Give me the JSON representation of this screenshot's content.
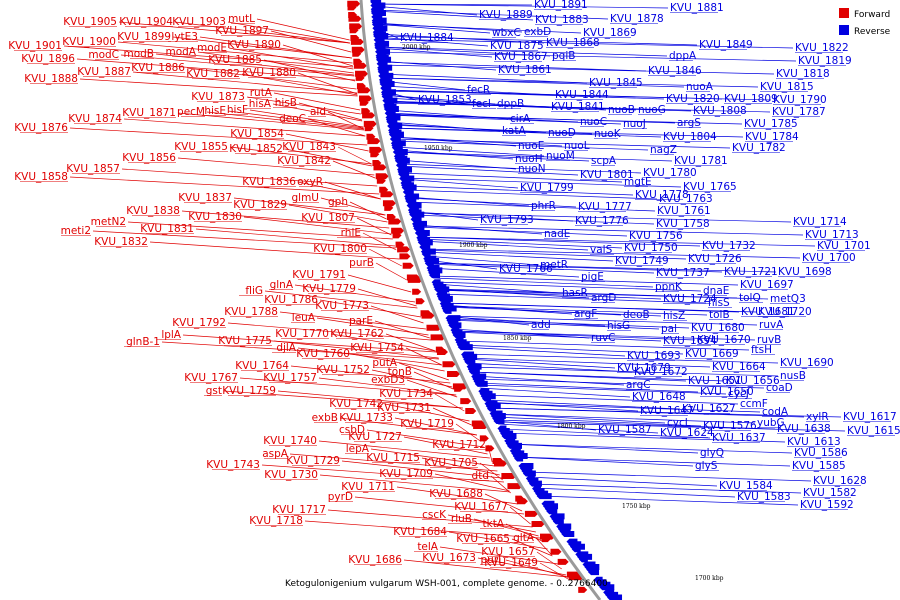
{
  "caption": "Ketogulonigenium vulgarum WSH-001, complete genome. - 0..2766400",
  "legend": [
    {
      "label": "Forward",
      "color": "#e00000"
    },
    {
      "label": "Reverse",
      "color": "#0000e0"
    }
  ],
  "colors": {
    "forward": "#e00000",
    "reverse": "#0000e0",
    "backbone": "#9a9a9a"
  },
  "ticks": [
    "2000 kbp",
    "1950 kbp",
    "1900 kbp",
    "1850 kbp",
    "1800 kbp",
    "1750 kbp",
    "1700 kbp"
  ],
  "forward_labels": [
    "KVU_1905",
    "KVU_1904",
    "KVU_1903",
    "mutL",
    "KVU_1897",
    "KVU_1901",
    "KVU_1900",
    "KVU_1899",
    "lytE3",
    "KVU_1890",
    "KVU_1896",
    "modC",
    "modB",
    "modA",
    "modE",
    "KVU_1885",
    "KVU_1888",
    "KVU_1887",
    "KVU_1886",
    "KVU_1882",
    "KVU_1880",
    "rutA",
    "KVU_1873",
    "hisB",
    "hisA",
    "KVU_1871",
    "pecM",
    "hisE",
    "hisF",
    "ald",
    "KVU_1876",
    "KVU_1874",
    "deoC",
    "KVU_1854",
    "KVU_1855",
    "KVU_1852",
    "KVU_1843",
    "KVU_1856",
    "KVU_1842",
    "KVU_1857",
    "KVU_1858",
    "KVU_1836",
    "oxyR",
    "KVU_1837",
    "KVU_1829",
    "glmU",
    "KVU_1838",
    "metN2",
    "KVU_1830",
    "KVU_1831",
    "meti2",
    "KVU_1832",
    "gph",
    "KVU_1807",
    "rhlE",
    "KVU_1800",
    "purB",
    "KVU_1791",
    "fliG",
    "glnA",
    "KVU_1779",
    "KVU_1786",
    "KVU_1773",
    "KVU_1788",
    "leuA",
    "KVU_1792",
    "parE",
    "lplA",
    "KVU_1770",
    "KVU_1762",
    "glnB-1",
    "KVU_1775",
    "djlA",
    "KVU_1754",
    "KVU_1760",
    "putA",
    "KVU_1764",
    "KVU_1752",
    "KVU_1767",
    "KVU_1757",
    "tonB",
    "gst",
    "KVU_1759",
    "exbD3",
    "KVU_1734",
    "KVU_1742",
    "KVU_1731",
    "exbB",
    "KVU_1733",
    "csbD",
    "KVU_1719",
    "KVU_1740",
    "KVU_1727",
    "aspA",
    "lepA",
    "KVU_1712",
    "KVU_1743",
    "KVU_1729",
    "KVU_1715",
    "KVU_1705",
    "KVU_1730",
    "KVU_1709",
    "dtd",
    "KVU_1711",
    "KVU_1688",
    "pyrD",
    "KVU_1677",
    "KVU_1717",
    "cscK",
    "rluB",
    "tktA",
    "KVU_1718",
    "KVU_1684",
    "KVU_1665",
    "gltA",
    "telA",
    "KVU_1657",
    "KVU_1686",
    "KVU_1673",
    "purL",
    "KVU_1649"
  ],
  "reverse_labels": [
    "KVU_1891",
    "KVU_1881",
    "KVU_1889",
    "KVU_1883",
    "KVU_1878",
    "KVU_1884",
    "wbxC",
    "exbD",
    "KVU_1869",
    "KVU_1875",
    "KVU_1868",
    "KVU_1849",
    "KVU_1867",
    "pqiB",
    "dppA",
    "KVU_1822",
    "KVU_1861",
    "KVU_1846",
    "KVU_1819",
    "fecR",
    "KVU_1845",
    "KVU_1818",
    "fecI",
    "KVU_1844",
    "nuoA",
    "KVU_1815",
    "KVU_1853",
    "dppB",
    "KVU_1820",
    "KVU_1809",
    "KVU_1790",
    "KVU_1841",
    "nuoB",
    "nuoG",
    "KVU_1808",
    "KVU_1787",
    "cirA",
    "nuoC",
    "nuoJ",
    "argS",
    "KVU_1785",
    "katA",
    "nuoD",
    "nuoK",
    "KVU_1804",
    "KVU_1784",
    "nuoE",
    "nuoL",
    "nagZ",
    "KVU_1782",
    "nuoH",
    "nuoM",
    "scpA",
    "KVU_1781",
    "nuoN",
    "KVU_1801",
    "KVU_1780",
    "mgtE",
    "KVU_1765",
    "KVU_1799",
    "KVU_1778",
    "KVU_1763",
    "phrR",
    "KVU_1777",
    "KVU_1761",
    "KVU_1793",
    "KVU_1776",
    "KVU_1758",
    "KVU_1714",
    "nadE",
    "KVU_1756",
    "KVU_1713",
    "valS",
    "KVU_1750",
    "KVU_1732",
    "KVU_1701",
    "metR",
    "KVU_1749",
    "KVU_1726",
    "KVU_1700",
    "KVU_1766",
    "pigE",
    "KVU_1737",
    "KVU_1721",
    "KVU_1698",
    "hasR",
    "ppnK",
    "dnaE",
    "KVU_1697",
    "argD",
    "KVU_1724",
    "hisS",
    "tolQ",
    "argF",
    "deoB",
    "hisZ",
    "tolB",
    "KVU_1681",
    "metQ3",
    "add",
    "hisG",
    "pal",
    "KVU_1680",
    "KVU_1720",
    "ruvC",
    "KVU_1694",
    "KVU_1670",
    "ruvA",
    "KVU_1693",
    "KVU_1669",
    "ruvB",
    "KVU_1679",
    "KVU_1664",
    "ftsH",
    "KVU_1672",
    "KVU_1656",
    "KVU_1690",
    "argC",
    "KVU_1651",
    "nusB",
    "KVU_1650",
    "coaD",
    "KVU_1648",
    "cycJ",
    "KVU_1647",
    "ccmF",
    "KVU_1627",
    "codA",
    "cycL",
    "yubG",
    "KVU_1587",
    "KVU_1624",
    "KVU_1576",
    "xylR",
    "KVU_1617",
    "KVU_1638",
    "KVU_1615",
    "KVU_1637",
    "KVU_1613",
    "glyQ",
    "KVU_1586",
    "glyS",
    "KVU_1585",
    "KVU_1584",
    "KVU_1628",
    "KVU_1583",
    "KVU_1582",
    "KVU_1592"
  ]
}
